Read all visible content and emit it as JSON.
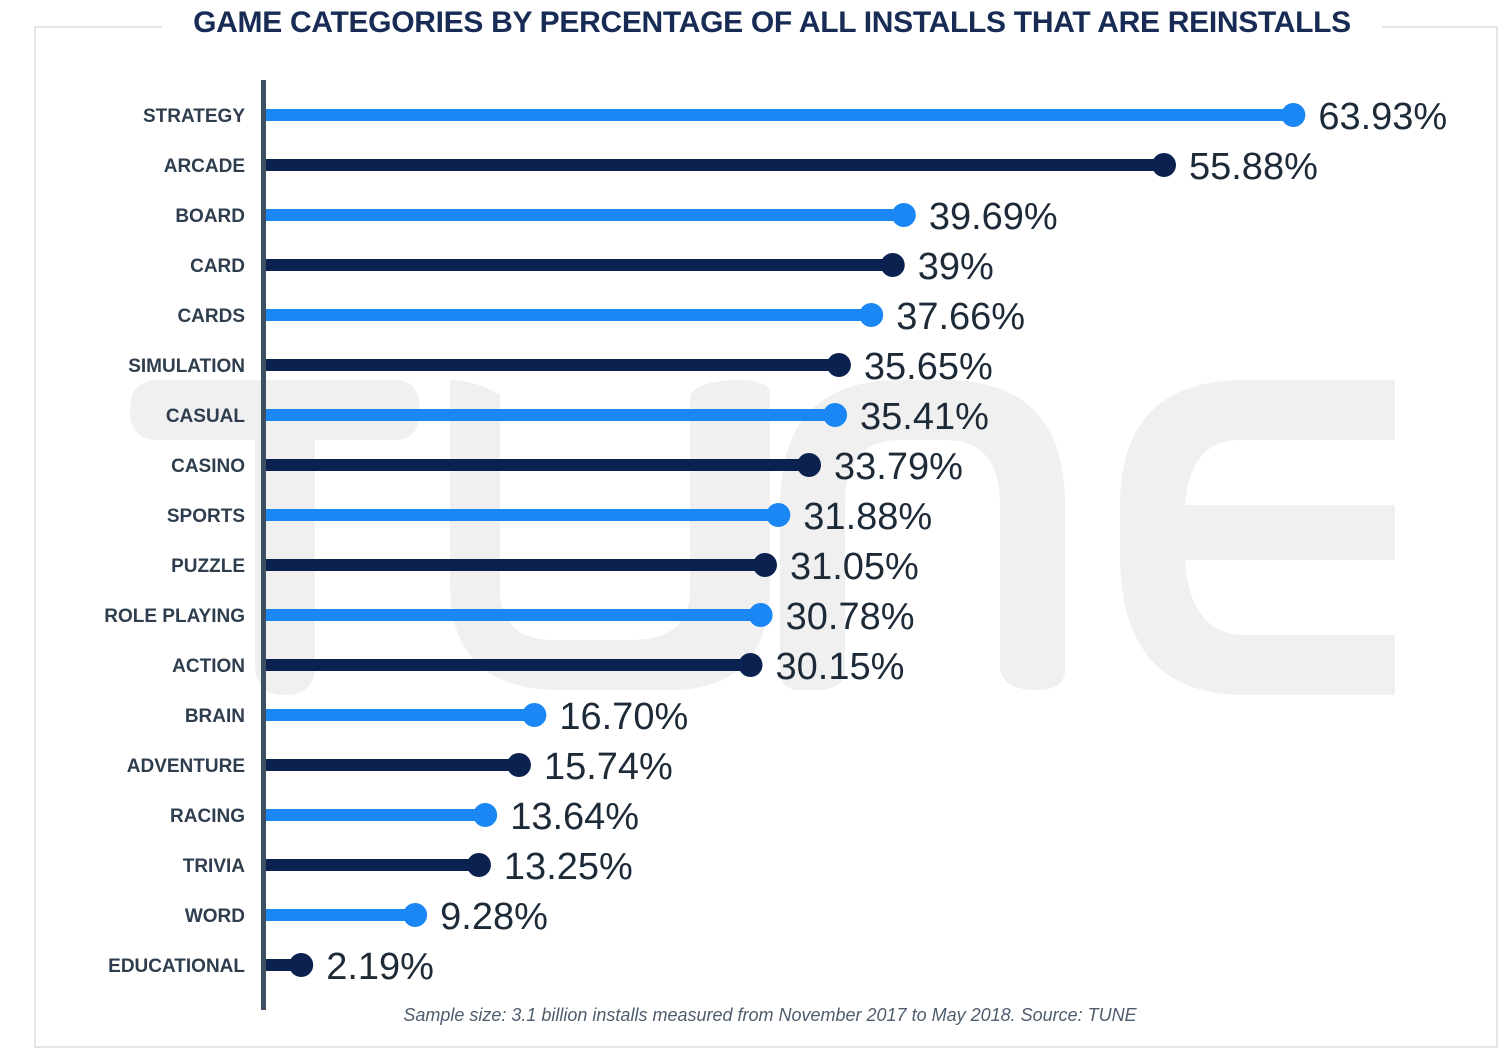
{
  "title": "GAME CATEGORIES BY PERCENTAGE OF ALL INSTALLS THAT ARE REINSTALLS",
  "footnote": "Sample size: 3.1 billion installs measured from November 2017 to May 2018. Source: TUNE",
  "watermark": {
    "text": "TUNE",
    "color": "#f0f0f0"
  },
  "colors": {
    "light_series": "#1a87f4",
    "dark_series": "#0b2150",
    "axis": "#3d4f61",
    "title": "#172b55"
  },
  "chart_data": {
    "type": "bar",
    "title": "GAME CATEGORIES BY PERCENTAGE OF ALL INSTALLS THAT ARE REINSTALLS",
    "orientation": "horizontal",
    "style": "lollipop",
    "xlabel": "",
    "ylabel": "",
    "xlim": [
      0,
      64
    ],
    "grid": false,
    "categories": [
      "STRATEGY",
      "ARCADE",
      "BOARD",
      "CARD",
      "CARDS",
      "SIMULATION",
      "CASUAL",
      "CASINO",
      "SPORTS",
      "PUZZLE",
      "ROLE PLAYING",
      "ACTION",
      "BRAIN",
      "ADVENTURE",
      "RACING",
      "TRIVIA",
      "WORD",
      "EDUCATIONAL"
    ],
    "values": [
      63.93,
      55.88,
      39.69,
      39,
      37.66,
      35.65,
      35.41,
      33.79,
      31.88,
      31.05,
      30.78,
      30.15,
      16.7,
      15.74,
      13.64,
      13.25,
      9.28,
      2.19
    ],
    "value_labels": [
      "63.93%",
      "55.88%",
      "39.69%",
      "39%",
      "37.66%",
      "35.65%",
      "35.41%",
      "33.79%",
      "31.88%",
      "31.05%",
      "30.78%",
      "30.15%",
      "16.70%",
      "15.74%",
      "13.64%",
      "13.25%",
      "9.28%",
      "2.19%"
    ]
  }
}
